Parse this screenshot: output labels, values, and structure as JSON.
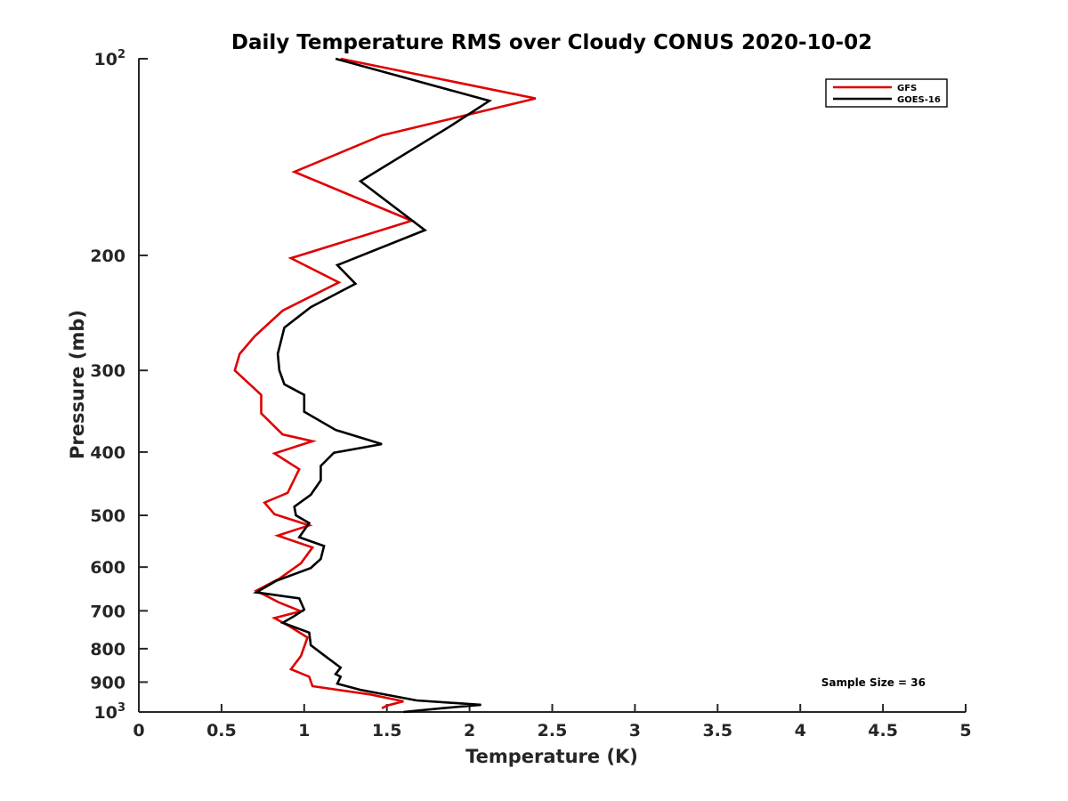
{
  "chart_data": {
    "type": "line",
    "title": "Daily Temperature RMS over Cloudy CONUS 2020-10-02",
    "xlabel": "Temperature (K)",
    "ylabel": "Pressure (mb)",
    "xlim": [
      0,
      5
    ],
    "ylim": [
      100,
      1000
    ],
    "y_scale": "log",
    "y_reversed": true,
    "grid": false,
    "legend_position": "top-right",
    "x_ticks": [
      0,
      0.5,
      1,
      1.5,
      2,
      2.5,
      3,
      3.5,
      4,
      4.5,
      5
    ],
    "x_tick_labels": [
      "0",
      "0.5",
      "1",
      "1.5",
      "2",
      "2.5",
      "3",
      "3.5",
      "4",
      "4.5",
      "5"
    ],
    "y_ticks": [
      {
        "value": 100,
        "base": "10",
        "exp": "2"
      },
      {
        "value": 200,
        "label": "200"
      },
      {
        "value": 300,
        "label": "300"
      },
      {
        "value": 400,
        "label": "400"
      },
      {
        "value": 500,
        "label": "500"
      },
      {
        "value": 600,
        "label": "600"
      },
      {
        "value": 700,
        "label": "700"
      },
      {
        "value": 800,
        "label": "800"
      },
      {
        "value": 900,
        "label": "900"
      },
      {
        "value": 1000,
        "base": "10",
        "exp": "3"
      }
    ],
    "annotation": "Sample Size = 36",
    "series": [
      {
        "name": "GFS",
        "color": "#e00000",
        "points": [
          [
            1.22,
            100
          ],
          [
            2.4,
            115
          ],
          [
            1.47,
            131
          ],
          [
            0.94,
            149
          ],
          [
            1.65,
            177
          ],
          [
            0.92,
            202
          ],
          [
            1.21,
            220
          ],
          [
            0.87,
            243
          ],
          [
            0.7,
            266
          ],
          [
            0.61,
            283
          ],
          [
            0.58,
            300
          ],
          [
            0.74,
            327
          ],
          [
            0.74,
            349
          ],
          [
            0.87,
            376
          ],
          [
            1.05,
            385
          ],
          [
            0.82,
            402
          ],
          [
            0.97,
            425
          ],
          [
            0.9,
            462
          ],
          [
            0.76,
            478
          ],
          [
            0.82,
            498
          ],
          [
            1.03,
            518
          ],
          [
            0.84,
            537
          ],
          [
            1.05,
            560
          ],
          [
            0.98,
            592
          ],
          [
            0.85,
            625
          ],
          [
            0.71,
            652
          ],
          [
            0.85,
            680
          ],
          [
            0.98,
            701
          ],
          [
            0.82,
            718
          ],
          [
            0.91,
            739
          ],
          [
            1.02,
            769
          ],
          [
            0.98,
            821
          ],
          [
            0.92,
            860
          ],
          [
            1.03,
            883
          ],
          [
            1.05,
            913
          ],
          [
            1.4,
            940
          ],
          [
            1.6,
            963
          ],
          [
            1.5,
            978
          ],
          [
            1.47,
            987
          ]
        ]
      },
      {
        "name": "GOES-16",
        "color": "#000000",
        "points": [
          [
            1.19,
            100
          ],
          [
            2.12,
            116
          ],
          [
            1.88,
            127
          ],
          [
            1.34,
            154
          ],
          [
            1.73,
            183
          ],
          [
            1.2,
            207
          ],
          [
            1.31,
            221
          ],
          [
            1.04,
            240
          ],
          [
            0.88,
            258
          ],
          [
            0.84,
            283
          ],
          [
            0.85,
            300
          ],
          [
            0.88,
            315
          ],
          [
            1.0,
            327
          ],
          [
            1.0,
            347
          ],
          [
            1.19,
            370
          ],
          [
            1.47,
            389
          ],
          [
            1.18,
            401
          ],
          [
            1.1,
            420
          ],
          [
            1.1,
            442
          ],
          [
            1.04,
            465
          ],
          [
            0.94,
            485
          ],
          [
            0.95,
            500
          ],
          [
            1.03,
            514
          ],
          [
            0.97,
            540
          ],
          [
            1.12,
            557
          ],
          [
            1.1,
            583
          ],
          [
            1.04,
            602
          ],
          [
            0.83,
            630
          ],
          [
            0.71,
            656
          ],
          [
            0.97,
            670
          ],
          [
            1.0,
            697
          ],
          [
            0.94,
            713
          ],
          [
            0.87,
            730
          ],
          [
            1.03,
            756
          ],
          [
            1.04,
            790
          ],
          [
            1.11,
            815
          ],
          [
            1.22,
            855
          ],
          [
            1.19,
            875
          ],
          [
            1.22,
            883
          ],
          [
            1.2,
            905
          ],
          [
            1.34,
            925
          ],
          [
            1.68,
            960
          ],
          [
            2.07,
            975
          ],
          [
            1.83,
            987
          ],
          [
            1.6,
            1000
          ]
        ]
      }
    ]
  }
}
